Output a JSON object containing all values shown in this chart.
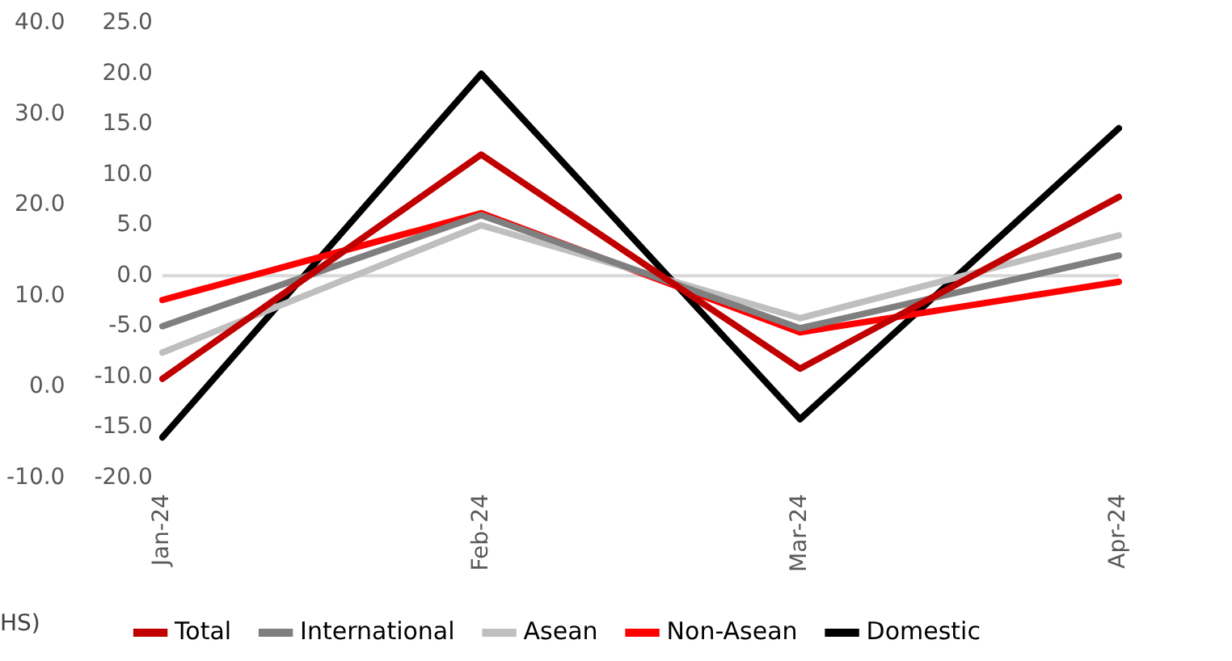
{
  "chart_data": {
    "type": "line",
    "categories": [
      "Jan-24",
      "Feb-24",
      "Mar-24",
      "Apr-24"
    ],
    "series": [
      {
        "name": "Total",
        "color": "#c00000",
        "values": [
          -10.2,
          12,
          -9.2,
          7.8
        ]
      },
      {
        "name": "International",
        "color": "#7f7f7f",
        "values": [
          -5,
          6,
          -5.2,
          2
        ]
      },
      {
        "name": "Asean",
        "color": "#bfbfbf",
        "values": [
          -7.6,
          5,
          -4.2,
          4
        ]
      },
      {
        "name": "Non-Asean",
        "color": "#ff0000",
        "values": [
          -2.4,
          6.2,
          -5.6,
          -0.6
        ]
      },
      {
        "name": "Domestic",
        "color": "#000000",
        "values": [
          -16,
          20,
          -14.2,
          14.6
        ]
      }
    ],
    "ylim": [
      -20,
      25
    ],
    "yticks": [
      {
        "value": -20,
        "label": "-20.0"
      },
      {
        "value": -15,
        "label": "-15.0"
      },
      {
        "value": -10,
        "label": "-10.0"
      },
      {
        "value": -5,
        "label": "-5.0"
      },
      {
        "value": 0,
        "label": "0.0"
      },
      {
        "value": 5,
        "label": "5.0"
      },
      {
        "value": 10,
        "label": "10.0"
      },
      {
        "value": 15,
        "label": "15.0"
      },
      {
        "value": 20,
        "label": "20.0"
      },
      {
        "value": 25,
        "label": "25.0"
      }
    ],
    "y2lim": [
      -10,
      40
    ],
    "ref_lines": [
      {
        "axis": "y",
        "value": 0,
        "color": "#d9d9d9"
      }
    ],
    "y2ticks": [
      {
        "value": -10,
        "label": "-10.0"
      },
      {
        "value": 0,
        "label": "0.0"
      },
      {
        "value": 10,
        "label": "10.0"
      },
      {
        "value": 20,
        "label": "20.0"
      },
      {
        "value": 30,
        "label": "30.0"
      },
      {
        "value": 40,
        "label": "40.0"
      }
    ],
    "annotations": [
      "HS)"
    ],
    "legend": "bottom",
    "marker": "none",
    "line_style": "solid",
    "grid": false
  }
}
